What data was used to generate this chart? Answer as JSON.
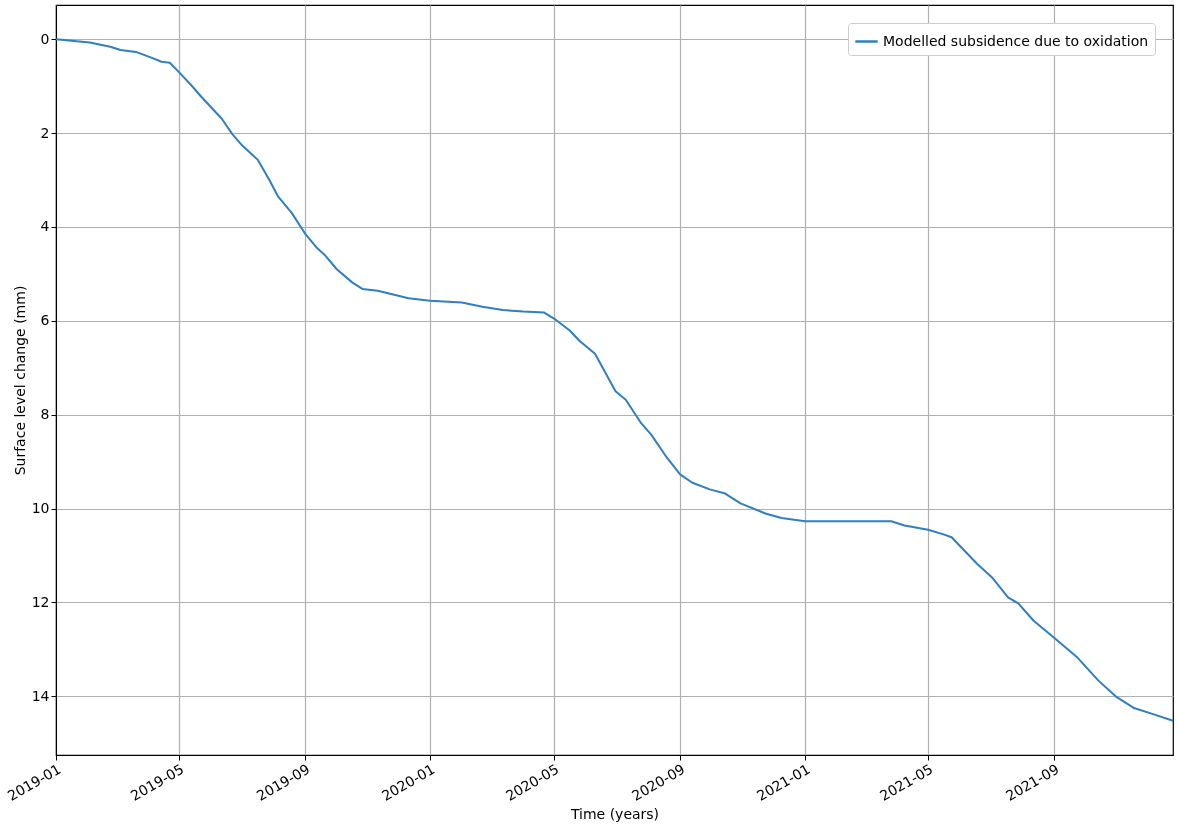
{
  "chart_data": {
    "type": "line",
    "xlabel": "Time (years)",
    "ylabel": "Surface level change (mm)",
    "x": [
      "2019-01-01",
      "2019-02-03",
      "2019-02-23",
      "2019-03-05",
      "2019-03-20",
      "2019-04-04",
      "2019-04-14",
      "2019-04-22",
      "2019-05-01",
      "2019-05-13",
      "2019-05-23",
      "2019-06-12",
      "2019-06-22",
      "2019-07-02",
      "2019-07-17",
      "2019-07-27",
      "2019-08-06",
      "2019-08-19",
      "2019-09-01",
      "2019-09-12",
      "2019-09-20",
      "2019-10-02",
      "2019-10-17",
      "2019-10-27",
      "2019-11-11",
      "2019-11-21",
      "2019-12-11",
      "2020-01-01",
      "2020-02-01",
      "2020-02-21",
      "2020-03-12",
      "2020-04-01",
      "2020-04-21",
      "2020-05-01",
      "2020-05-16",
      "2020-05-26",
      "2020-06-10",
      "2020-06-30",
      "2020-07-10",
      "2020-07-25",
      "2020-08-04",
      "2020-08-19",
      "2020-09-01",
      "2020-09-13",
      "2020-09-30",
      "2020-10-15",
      "2020-10-30",
      "2020-11-24",
      "2020-12-09",
      "2021-01-01",
      "2021-02-17",
      "2021-03-26",
      "2021-04-08",
      "2021-05-01",
      "2021-05-16",
      "2021-05-24",
      "2021-06-03",
      "2021-06-18",
      "2021-07-03",
      "2021-07-18",
      "2021-07-28",
      "2021-08-12",
      "2021-09-01",
      "2021-09-24",
      "2021-10-14",
      "2021-10-31",
      "2021-11-18",
      "2021-12-08",
      "2021-12-26"
    ],
    "series": [
      {
        "name": "Modelled subsidence due to oxidation",
        "color": "#2f7fc1",
        "values": [
          0,
          0.07,
          0.16,
          0.23,
          0.27,
          0.39,
          0.48,
          0.5,
          0.7,
          0.98,
          1.23,
          1.7,
          2.02,
          2.27,
          2.57,
          2.95,
          3.36,
          3.7,
          4.14,
          4.43,
          4.59,
          4.9,
          5.18,
          5.32,
          5.36,
          5.41,
          5.52,
          5.57,
          5.61,
          5.7,
          5.77,
          5.8,
          5.82,
          5.95,
          6.2,
          6.43,
          6.7,
          7.5,
          7.68,
          8.18,
          8.43,
          8.91,
          9.27,
          9.45,
          9.59,
          9.68,
          9.89,
          10.11,
          10.2,
          10.27,
          10.27,
          10.27,
          10.36,
          10.45,
          10.55,
          10.61,
          10.84,
          11.18,
          11.48,
          11.89,
          12.02,
          12.39,
          12.75,
          13.18,
          13.66,
          14.0,
          14.25,
          14.39,
          14.52
        ]
      }
    ],
    "xlim": [
      "2019-01-01",
      "2021-12-26"
    ],
    "xticks": [
      "2019-01",
      "2019-05",
      "2019-09",
      "2020-01",
      "2020-05",
      "2020-09",
      "2021-01",
      "2021-05",
      "2021-09"
    ],
    "ylim": [
      15.25,
      -0.73
    ],
    "yticks": [
      0,
      2,
      4,
      6,
      8,
      10,
      12,
      14
    ],
    "grid": true,
    "legend": "top right",
    "marker": "none",
    "line_style": "solid"
  }
}
